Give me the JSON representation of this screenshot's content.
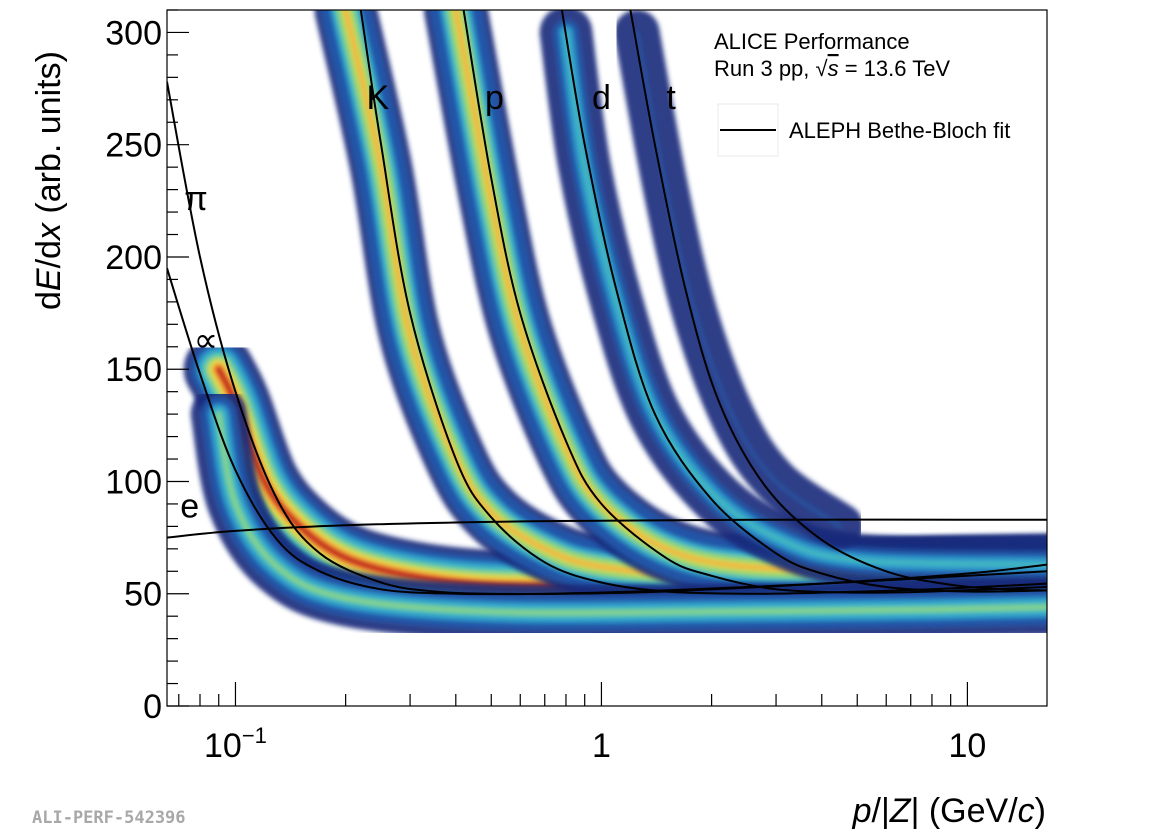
{
  "chart_data": {
    "type": "heatmap",
    "xscale": "log",
    "xlim": [
      0.065,
      16.5
    ],
    "ylim": [
      0,
      310
    ],
    "xlabel": {
      "italic": "p",
      "mid": "/|",
      "italic2": "Z",
      "rest": "| (GeV/",
      "italic3": "c",
      "end": ")"
    },
    "ylabel": {
      "pre": "d",
      "italic": "E",
      "mid": "/d",
      "italic2": "x",
      "rest": " (arb. units)"
    },
    "x_ticks": [
      {
        "value": 0.1,
        "base": "10",
        "exp": "−1"
      },
      {
        "value": 1,
        "base": "1",
        "exp": ""
      },
      {
        "value": 10,
        "base": "10",
        "exp": ""
      }
    ],
    "y_ticks": [
      0,
      50,
      100,
      150,
      200,
      250,
      300
    ],
    "annotation": {
      "line1": "ALICE Performance",
      "line2_pre": "Run 3 pp, ",
      "line2_sqrt": "√",
      "line2_s": "s",
      "line2_post": " = 13.6 TeV"
    },
    "legend": {
      "position": "top-right",
      "entries": [
        {
          "label": "ALEPH Bethe-Bloch fit",
          "style": "line"
        }
      ]
    },
    "species_labels": [
      {
        "text": "e",
        "x": 0.075,
        "y": 84
      },
      {
        "text": "∝",
        "x": 0.083,
        "y": 158
      },
      {
        "text": "π",
        "x": 0.078,
        "y": 221
      },
      {
        "text": "K",
        "x": 0.245,
        "y": 266
      },
      {
        "text": "p",
        "x": 0.51,
        "y": 266
      },
      {
        "text": "d",
        "x": 1.0,
        "y": 266
      },
      {
        "text": "t",
        "x": 1.55,
        "y": 266
      }
    ],
    "series": [
      {
        "name": "e",
        "points": [
          [
            0.065,
            75
          ],
          [
            0.1,
            78
          ],
          [
            0.2,
            80.5
          ],
          [
            0.5,
            82
          ],
          [
            1,
            82.5
          ],
          [
            3,
            83
          ],
          [
            10,
            83
          ],
          [
            16.5,
            83
          ]
        ]
      },
      {
        "name": "μ",
        "points": [
          [
            0.065,
            195
          ],
          [
            0.08,
            148
          ],
          [
            0.1,
            105
          ],
          [
            0.13,
            74
          ],
          [
            0.17,
            60
          ],
          [
            0.25,
            52
          ],
          [
            0.4,
            50
          ],
          [
            0.7,
            50
          ],
          [
            1.5,
            51.5
          ],
          [
            4,
            54.5
          ],
          [
            10,
            58
          ],
          [
            16.5,
            60
          ]
        ]
      },
      {
        "name": "π",
        "points": [
          [
            0.065,
            278
          ],
          [
            0.08,
            200
          ],
          [
            0.1,
            140
          ],
          [
            0.13,
            92
          ],
          [
            0.17,
            68
          ],
          [
            0.25,
            55
          ],
          [
            0.35,
            51
          ],
          [
            0.5,
            50
          ],
          [
            0.8,
            50
          ],
          [
            1.5,
            51
          ],
          [
            4,
            54.5
          ],
          [
            10,
            59
          ],
          [
            16.5,
            63
          ]
        ]
      },
      {
        "name": "K",
        "points": [
          [
            0.22,
            310
          ],
          [
            0.25,
            250
          ],
          [
            0.3,
            175
          ],
          [
            0.4,
            110
          ],
          [
            0.5,
            84
          ],
          [
            0.7,
            64
          ],
          [
            1,
            55
          ],
          [
            1.5,
            51
          ],
          [
            2.5,
            50
          ],
          [
            4,
            50.5
          ],
          [
            8,
            52
          ],
          [
            16.5,
            54.5
          ]
        ]
      },
      {
        "name": "p",
        "points": [
          [
            0.42,
            310
          ],
          [
            0.5,
            235
          ],
          [
            0.6,
            175
          ],
          [
            0.8,
            118
          ],
          [
            1,
            90
          ],
          [
            1.5,
            66
          ],
          [
            2,
            58
          ],
          [
            3,
            52
          ],
          [
            5,
            50.5
          ],
          [
            8,
            51
          ],
          [
            16.5,
            53
          ]
        ]
      },
      {
        "name": "d",
        "points": [
          [
            0.78,
            310
          ],
          [
            0.9,
            250
          ],
          [
            1.1,
            185
          ],
          [
            1.4,
            130
          ],
          [
            2,
            92
          ],
          [
            3,
            68
          ],
          [
            4,
            59
          ],
          [
            6,
            53
          ],
          [
            10,
            51
          ],
          [
            16.5,
            51.5
          ]
        ]
      },
      {
        "name": "t",
        "points": [
          [
            1.2,
            310
          ],
          [
            1.4,
            250
          ],
          [
            1.7,
            185
          ],
          [
            2.1,
            135
          ],
          [
            2.8,
            98
          ],
          [
            4,
            74
          ],
          [
            6,
            60
          ],
          [
            9,
            54
          ],
          [
            12.5,
            52
          ],
          [
            16.5,
            51.5
          ]
        ]
      }
    ],
    "density_bands": [
      {
        "name": "electron-pion",
        "path": [
          [
            0.09,
            150
          ],
          [
            0.1,
            135
          ],
          [
            0.12,
            100
          ],
          [
            0.15,
            80
          ],
          [
            0.2,
            66
          ],
          [
            0.3,
            58
          ],
          [
            0.5,
            54
          ],
          [
            1,
            54
          ],
          [
            3,
            57
          ],
          [
            8,
            60
          ],
          [
            16.5,
            61
          ]
        ],
        "intensity": 1.0
      },
      {
        "name": "kaon",
        "path": [
          [
            0.2,
            310
          ],
          [
            0.25,
            240
          ],
          [
            0.3,
            165
          ],
          [
            0.4,
            110
          ],
          [
            0.5,
            86
          ],
          [
            0.7,
            70
          ],
          [
            1,
            62
          ],
          [
            2,
            58
          ],
          [
            5,
            58
          ],
          [
            16.5,
            60
          ]
        ],
        "intensity": 0.75
      },
      {
        "name": "proton",
        "path": [
          [
            0.4,
            310
          ],
          [
            0.5,
            225
          ],
          [
            0.6,
            168
          ],
          [
            0.8,
            115
          ],
          [
            1,
            90
          ],
          [
            1.5,
            70
          ],
          [
            2.5,
            62
          ],
          [
            6,
            61
          ],
          [
            16.5,
            62
          ]
        ],
        "intensity": 0.8
      },
      {
        "name": "deuteron",
        "path": [
          [
            0.8,
            300
          ],
          [
            0.9,
            240
          ],
          [
            1.1,
            180
          ],
          [
            1.4,
            130
          ],
          [
            2,
            95
          ],
          [
            3,
            75
          ],
          [
            5,
            65
          ],
          [
            16.5,
            63
          ]
        ],
        "intensity": 0.45
      },
      {
        "name": "triton",
        "path": [
          [
            1.25,
            300
          ],
          [
            1.5,
            230
          ],
          [
            1.8,
            175
          ],
          [
            2.3,
            128
          ],
          [
            3,
            100
          ],
          [
            4.5,
            80
          ]
        ],
        "intensity": 0.22
      },
      {
        "name": "low-edge",
        "path": [
          [
            0.09,
            130
          ],
          [
            0.1,
            90
          ],
          [
            0.13,
            62
          ],
          [
            0.2,
            48
          ],
          [
            0.5,
            42
          ],
          [
            2,
            42
          ],
          [
            8,
            43
          ],
          [
            16.5,
            44
          ]
        ],
        "intensity": 0.55
      }
    ]
  },
  "footer_id": "ALI-PERF-542396",
  "colors": {
    "line": "#000000",
    "palette": [
      "#1a2a7a",
      "#2255a8",
      "#2d9bcc",
      "#4dc6b8",
      "#9ad66a",
      "#eae04a",
      "#f4a53a",
      "#e04a26",
      "#b8221c"
    ]
  }
}
